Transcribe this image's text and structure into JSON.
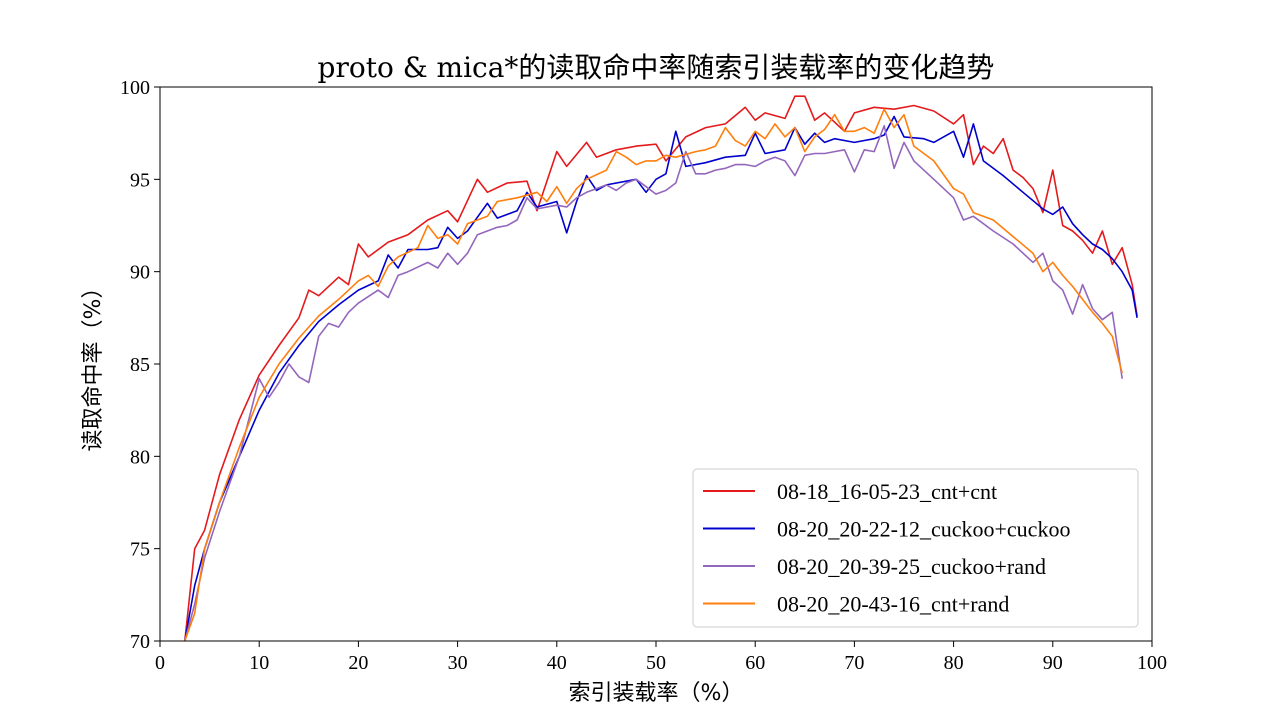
{
  "chart_data": {
    "type": "line",
    "title": "proto & mica*的读取命中率随索引装载率的变化趋势",
    "xlabel": "索引装载率（%）",
    "ylabel": "读取命中率（%）",
    "xlim": [
      0,
      100
    ],
    "ylim": [
      70,
      100
    ],
    "x_ticks": [
      "0",
      "10",
      "20",
      "30",
      "40",
      "50",
      "60",
      "70",
      "80",
      "90",
      "100"
    ],
    "y_ticks": [
      "70",
      "75",
      "80",
      "85",
      "90",
      "95",
      "100"
    ],
    "legend_position": "bottom-right",
    "grid": false,
    "series": [
      {
        "name": "08-18_16-05-23_cnt+cnt",
        "color": "#e41a1c",
        "x": [
          2.5,
          3.5,
          4.5,
          6,
          8,
          10,
          12,
          14,
          15,
          16,
          18,
          19,
          20,
          21,
          23,
          25,
          27,
          29,
          30,
          32,
          33,
          35,
          37,
          38,
          40,
          41,
          43,
          44,
          46,
          48,
          50,
          51,
          53,
          55,
          57,
          59,
          60,
          61,
          63,
          64,
          65,
          66,
          67,
          69,
          70,
          72,
          74,
          76,
          78,
          80,
          81,
          82,
          83,
          84,
          85,
          86,
          87,
          88,
          89,
          90,
          91,
          92,
          93,
          94,
          95,
          96,
          97,
          98,
          98.5
        ],
        "y": [
          70,
          75,
          76,
          79,
          82,
          84.4,
          86,
          87.5,
          89,
          88.7,
          89.7,
          89.3,
          91.5,
          90.8,
          91.6,
          92,
          92.8,
          93.3,
          92.7,
          95,
          94.3,
          94.8,
          94.9,
          93.3,
          96.5,
          95.7,
          97,
          96.2,
          96.6,
          96.8,
          96.9,
          96,
          97.3,
          97.8,
          98,
          98.9,
          98.2,
          98.6,
          98.3,
          99.5,
          99.5,
          98.2,
          98.6,
          97.6,
          98.6,
          98.9,
          98.8,
          99,
          98.7,
          98,
          98.5,
          95.8,
          96.8,
          96.4,
          97.2,
          95.5,
          95.1,
          94.5,
          93.2,
          95.5,
          92.5,
          92.2,
          91.7,
          91,
          92.2,
          90.4,
          91.3,
          89.3,
          87.6
        ]
      },
      {
        "name": "08-20_20-22-12_cuckoo+cuckoo",
        "color": "#0000cd",
        "x": [
          2.5,
          3.5,
          4.5,
          6,
          8,
          10,
          12,
          14,
          16,
          18,
          20,
          22,
          23,
          24,
          25,
          27,
          28,
          29,
          30,
          31,
          33,
          34,
          36,
          37,
          38,
          40,
          41,
          42,
          43,
          44,
          45,
          47,
          48,
          49,
          50,
          51,
          52,
          53,
          55,
          57,
          59,
          60,
          61,
          63,
          64,
          65,
          66,
          67,
          68,
          70,
          72,
          73,
          74,
          75,
          77,
          78,
          80,
          81,
          82,
          83,
          85,
          87,
          89,
          90,
          91,
          92,
          93,
          94,
          95,
          96,
          97,
          98,
          98.5
        ],
        "y": [
          70,
          73,
          75,
          77.5,
          80,
          82.5,
          84.5,
          86,
          87.3,
          88.2,
          89,
          89.5,
          90.9,
          90.2,
          91.2,
          91.2,
          91.3,
          92.4,
          91.8,
          92.2,
          93.7,
          92.9,
          93.3,
          94.3,
          93.5,
          93.8,
          92.1,
          93.8,
          95.2,
          94.4,
          94.7,
          94.9,
          95,
          94.3,
          95,
          95.3,
          97.6,
          95.7,
          95.9,
          96.2,
          96.3,
          97.5,
          96.4,
          96.6,
          97.8,
          96.9,
          97.5,
          97.0,
          97.2,
          97,
          97.2,
          97.4,
          98.4,
          97.3,
          97.2,
          97.0,
          97.6,
          96.2,
          98.0,
          96,
          95.2,
          94.3,
          93.4,
          93.1,
          93.5,
          92.6,
          92.0,
          91.5,
          91.2,
          90.7,
          90.0,
          89.0,
          87.5
        ]
      },
      {
        "name": "08-20_20-39-25_cuckoo+rand",
        "color": "#9467bd",
        "x": [
          2.5,
          3.5,
          4.5,
          6,
          8,
          10,
          11,
          12,
          13,
          14,
          15,
          16,
          17,
          18,
          19,
          20,
          22,
          23,
          24,
          25,
          27,
          28,
          29,
          30,
          31,
          32,
          34,
          35,
          36,
          37,
          38,
          40,
          41,
          42,
          43,
          44,
          45,
          46,
          47,
          48,
          49,
          50,
          51,
          52,
          53,
          54,
          55,
          56,
          57,
          58,
          59,
          60,
          61,
          62,
          63,
          64,
          65,
          66,
          67,
          68,
          69,
          70,
          71,
          72,
          73,
          74,
          75,
          76,
          78,
          80,
          81,
          82,
          84,
          86,
          88,
          89,
          90,
          91,
          92,
          93,
          94,
          95,
          96,
          97
        ],
        "y": [
          70,
          72,
          74.5,
          77,
          80,
          84.2,
          83.2,
          84,
          85,
          84.3,
          84.0,
          86.5,
          87.2,
          87.0,
          87.8,
          88.3,
          89.0,
          88.6,
          89.8,
          90.0,
          90.5,
          90.2,
          91.0,
          90.4,
          91.0,
          92.0,
          92.4,
          92.5,
          92.8,
          94.0,
          93.4,
          93.6,
          93.5,
          94.0,
          94.3,
          94.5,
          94.7,
          94.4,
          94.8,
          95.0,
          94.6,
          94.2,
          94.4,
          94.8,
          96.5,
          95.3,
          95.3,
          95.5,
          95.6,
          95.8,
          95.8,
          95.7,
          96.0,
          96.2,
          96.0,
          95.2,
          96.3,
          96.4,
          96.4,
          96.5,
          96.6,
          95.4,
          96.6,
          96.5,
          97.9,
          95.6,
          97.0,
          96.0,
          95.0,
          94.0,
          92.8,
          93.0,
          92.2,
          91.5,
          90.5,
          91.0,
          89.5,
          89.0,
          87.7,
          89.3,
          88.0,
          87.4,
          87.8,
          84.2
        ]
      },
      {
        "name": "08-20_20-43-16_cnt+rand",
        "color": "#ff7f0e",
        "x": [
          2.5,
          3.5,
          4.5,
          6,
          8,
          10,
          12,
          14,
          16,
          18,
          20,
          21,
          22,
          23,
          24,
          26,
          27,
          28,
          29,
          30,
          31,
          33,
          34,
          36,
          38,
          39,
          40,
          41,
          42,
          43,
          45,
          46,
          47,
          48,
          49,
          50,
          51,
          52,
          54,
          55,
          56,
          57,
          58,
          59,
          60,
          61,
          62,
          63,
          64,
          65,
          66,
          67,
          68,
          69,
          70,
          71,
          72,
          73,
          74,
          75,
          76,
          78,
          80,
          81,
          82,
          84,
          86,
          88,
          89,
          90,
          91,
          92,
          93,
          94,
          95,
          96,
          97
        ],
        "y": [
          70,
          71.5,
          75,
          77.5,
          80.5,
          83.2,
          85.0,
          86.4,
          87.6,
          88.5,
          89.5,
          89.8,
          89.2,
          90.3,
          90.8,
          91.3,
          92.5,
          91.8,
          92.0,
          91.5,
          92.6,
          93.0,
          93.8,
          94.0,
          94.3,
          93.8,
          94.6,
          93.7,
          94.5,
          95.0,
          95.5,
          96.5,
          96.2,
          95.8,
          96.0,
          96.0,
          96.3,
          96.2,
          96.5,
          96.6,
          96.8,
          97.8,
          97.1,
          96.8,
          97.6,
          97.2,
          98.0,
          97.3,
          97.8,
          96.5,
          97.3,
          97.7,
          98.5,
          97.6,
          97.6,
          97.8,
          97.5,
          98.8,
          97.8,
          98.5,
          96.8,
          96.0,
          94.5,
          94.2,
          93.2,
          92.8,
          91.9,
          91.0,
          90.0,
          90.5,
          89.8,
          89.2,
          88.5,
          87.8,
          87.2,
          86.5,
          84.5
        ]
      }
    ]
  }
}
